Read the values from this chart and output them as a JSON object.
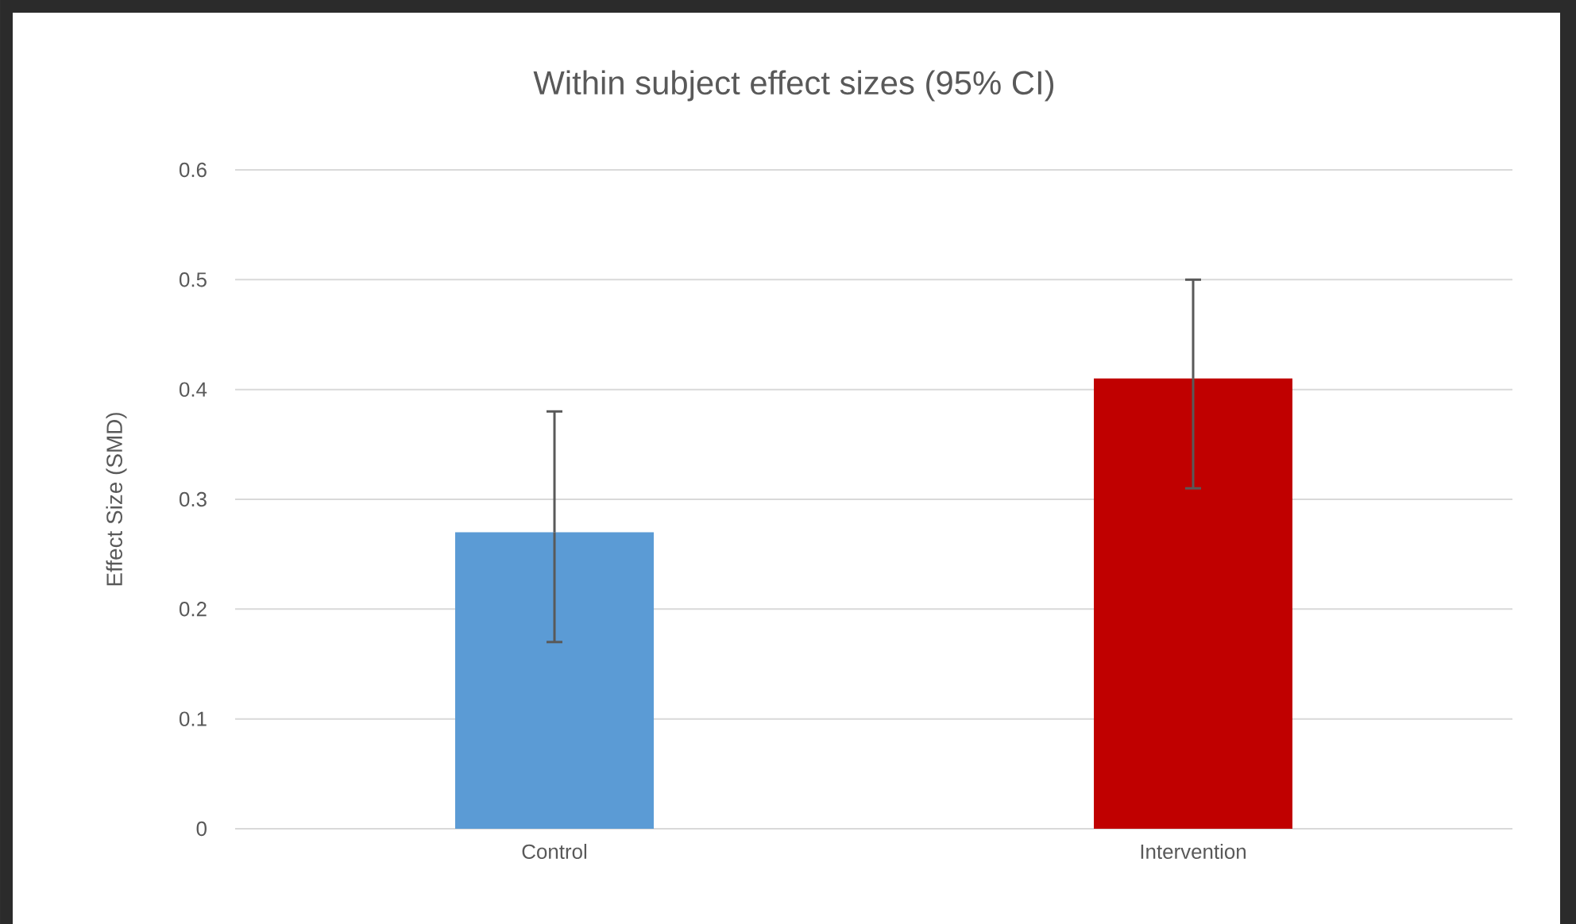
{
  "chart_data": {
    "type": "bar",
    "title": "Within subject effect sizes (95% CI)",
    "ylabel": "Effect Size (SMD)",
    "categories": [
      "Control",
      "Intervention"
    ],
    "values": [
      0.27,
      0.41
    ],
    "colors": [
      "#5b9bd5",
      "#c00000"
    ],
    "errors": [
      [
        0.17,
        0.38
      ],
      [
        0.31,
        0.5
      ]
    ],
    "ylim": [
      0,
      0.6
    ],
    "yticks": [
      0,
      0.1,
      0.2,
      0.3,
      0.4,
      0.5,
      0.6
    ],
    "grid": "y"
  }
}
